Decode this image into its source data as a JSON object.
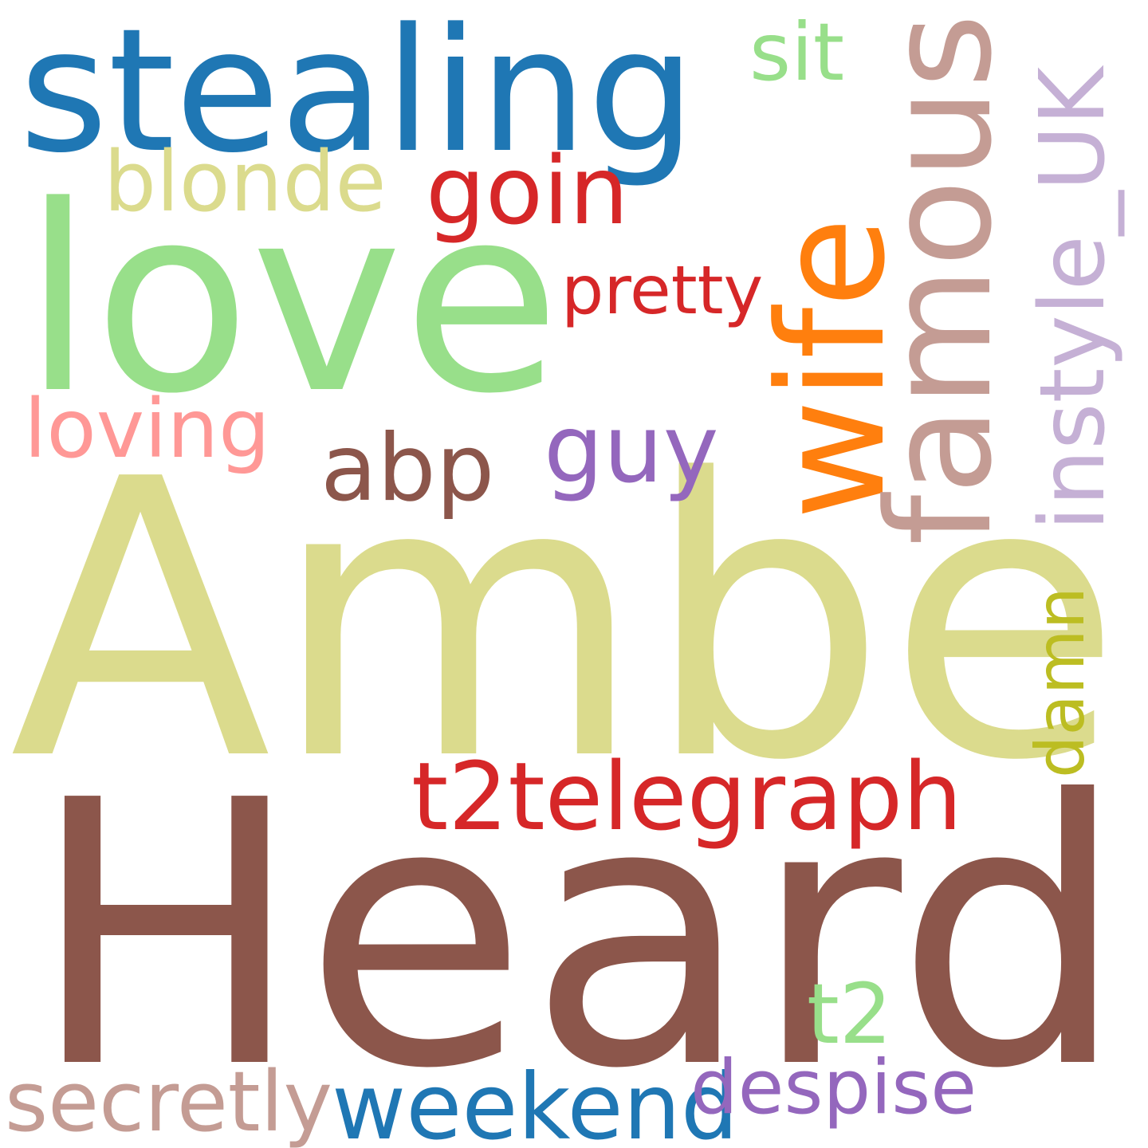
{
  "words": [
    {
      "key": "amber",
      "text": "Amber",
      "color": "#dbdb8d"
    },
    {
      "key": "heard",
      "text": "Heard",
      "color": "#8c564b"
    },
    {
      "key": "love",
      "text": "love",
      "color": "#98df8a"
    },
    {
      "key": "stealing",
      "text": "stealing",
      "color": "#1f77b4"
    },
    {
      "key": "wife",
      "text": "wife",
      "color": "#ff7f0e"
    },
    {
      "key": "famous",
      "text": "famous",
      "color": "#c49c94"
    },
    {
      "key": "instyle_uk",
      "text": "instyle_UK",
      "color": "#c5b0d5"
    },
    {
      "key": "blonde",
      "text": "blonde",
      "color": "#dbdb8d"
    },
    {
      "key": "goin",
      "text": "goin",
      "color": "#d62728"
    },
    {
      "key": "sit",
      "text": "sit",
      "color": "#98df8a"
    },
    {
      "key": "pretty",
      "text": "pretty",
      "color": "#d62728"
    },
    {
      "key": "loving",
      "text": "loving",
      "color": "#ff9896"
    },
    {
      "key": "abp",
      "text": "abp",
      "color": "#8c564b"
    },
    {
      "key": "guy",
      "text": "guy",
      "color": "#9467bd"
    },
    {
      "key": "t2telegraph",
      "text": "t2telegraph",
      "color": "#d62728"
    },
    {
      "key": "damn",
      "text": "damn",
      "color": "#bcbd22"
    },
    {
      "key": "t2",
      "text": "t2",
      "color": "#98df8a"
    },
    {
      "key": "secretly",
      "text": "secretly",
      "color": "#c49c94"
    },
    {
      "key": "weekend",
      "text": "weekend",
      "color": "#1f77b4"
    },
    {
      "key": "despise",
      "text": "despise",
      "color": "#9467bd"
    }
  ]
}
